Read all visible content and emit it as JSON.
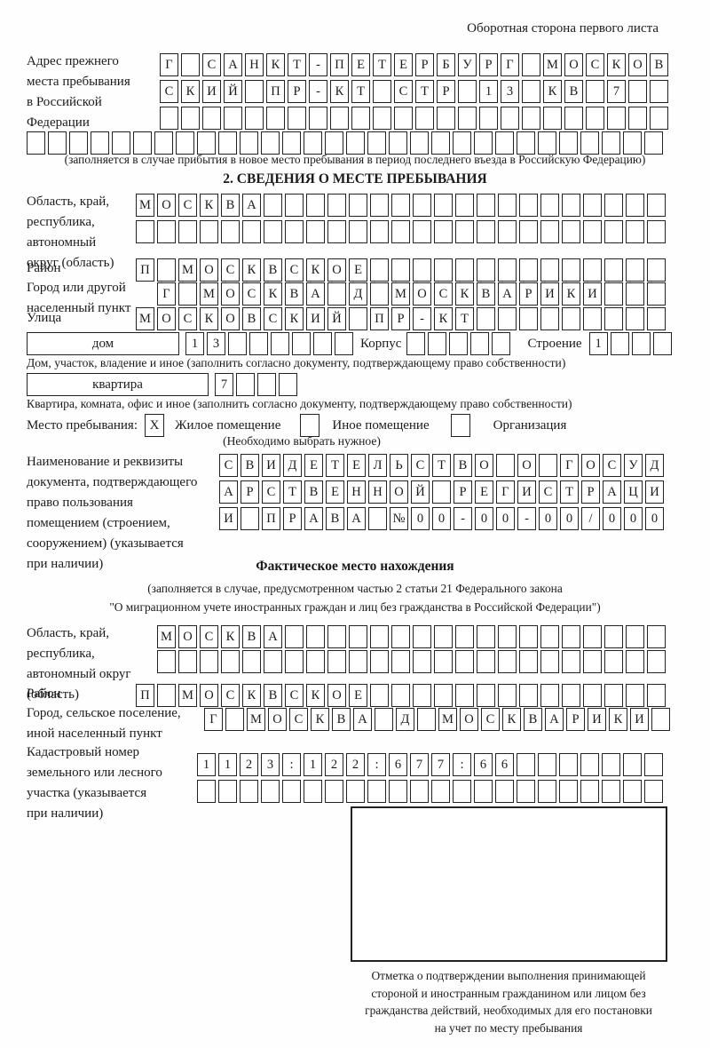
{
  "page_note": "Оборотная сторона первого листа",
  "prev_address": {
    "label_lines": [
      "Адрес прежнего",
      "места пребывания",
      "в Российской",
      "Федерации"
    ],
    "rows": [
      {
        "t": "Г САНКТ-ПЕТЕРБУРГ МОСКОВ",
        "n": 24
      },
      {
        "t": "СКИЙ ПР-КТ СТР 13 КВ 7",
        "n": 24
      },
      {
        "t": "",
        "n": 24
      },
      {
        "t": "",
        "n": 30
      }
    ],
    "note": "(заполняется в случае прибытия в новое место пребывания в период последнего въезда в Российскую Федерацию)"
  },
  "section2": {
    "title": "2. СВЕДЕНИЯ О МЕСТЕ ПРЕБЫВАНИЯ",
    "oblast": {
      "label_lines": [
        "Область, край,",
        "республика,",
        "автономный",
        "округ (область)"
      ],
      "rows": [
        {
          "t": "МОСКВА",
          "n": 25
        },
        {
          "t": "",
          "n": 25
        }
      ]
    },
    "rayon": {
      "label": "Район",
      "row": {
        "t": "П МОСКВСКОЕ",
        "n": 25
      }
    },
    "gorod": {
      "label_lines": [
        "Город или другой",
        "населенный пункт"
      ],
      "row": {
        "t": "Г МОСКВА Д МОСКВАРИКИ",
        "n": 24
      }
    },
    "ulitsa": {
      "label": "Улица",
      "row": {
        "t": "МОСКОВСКИЙ ПР-КТ",
        "n": 25
      }
    },
    "dom": {
      "box_label": "дом",
      "cells": {
        "t": "13",
        "n": 8
      },
      "korpus_label": "Корпус",
      "korpus_cells": {
        "t": "",
        "n": 5
      },
      "stroenie_label": "Строение",
      "stroenie_cells": {
        "t": "1",
        "n": 4
      },
      "note": "Дом, участок, владение и иное (заполнить согласно документу, подтверждающему право собственности)"
    },
    "kvartira": {
      "box_label": "квартира",
      "cells": {
        "t": "7",
        "n": 4
      },
      "note": "Квартира, комната, офис и иное (заполнить согласно документу, подтверждающему право собственности)"
    },
    "mesto": {
      "label": "Место пребывания:",
      "options": [
        {
          "mark": "X",
          "label": "Жилое помещение"
        },
        {
          "mark": "",
          "label": "Иное помещение"
        },
        {
          "mark": "",
          "label": "Организация"
        }
      ],
      "note": "(Необходимо выбрать нужное)"
    },
    "doc": {
      "label_lines": [
        "Наименование и реквизиты",
        "документа, подтверждающего",
        "право пользования",
        "помещением (строением,",
        "сооружением) (указывается",
        "при наличии)"
      ],
      "rows": [
        {
          "t": "СВИДЕТЕЛЬСТВО О ГОСУД",
          "n": 21
        },
        {
          "t": "АРСТВЕННОЙ РЕГИСТРАЦИ",
          "n": 21
        },
        {
          "t": "И ПРАВА №00-00-00/000",
          "n": 21
        }
      ]
    }
  },
  "fact": {
    "title": "Фактическое место нахождения",
    "note_lines": [
      "(заполняется в случае, предусмотренном частью 2 статьи 21 Федерального закона",
      "\"О миграционном учете иностранных граждан и лиц без гражданства в Российской Федерации\")"
    ],
    "oblast": {
      "label_lines": [
        "Область, край,",
        "республика,",
        "автономный округ",
        "(область)"
      ],
      "rows": [
        {
          "t": "МОСКВА",
          "n": 24
        },
        {
          "t": "",
          "n": 24
        }
      ]
    },
    "rayon": {
      "label": "Район",
      "row": {
        "t": "П МОСКВСКОЕ",
        "n": 25
      }
    },
    "gorod": {
      "label_lines": [
        "Город, сельское поселение,",
        "иной населенный пункт"
      ],
      "row": {
        "t": "Г МОСКВА Д МОСКВАРИКИ",
        "n": 22
      }
    },
    "kadastr": {
      "label_lines": [
        "Кадастровый номер",
        "земельного или лесного",
        "участка (указывается",
        "при наличии)"
      ],
      "rows": [
        {
          "t": "1123:122:677:66",
          "n": 22
        },
        {
          "t": "",
          "n": 22
        }
      ]
    },
    "stamp_caption_lines": [
      "Отметка о подтверждении выполнения принимающей",
      "стороной и иностранным гражданином или лицом без",
      "гражданства действий, необходимых для его постановки",
      "на учет по месту пребывания"
    ]
  }
}
